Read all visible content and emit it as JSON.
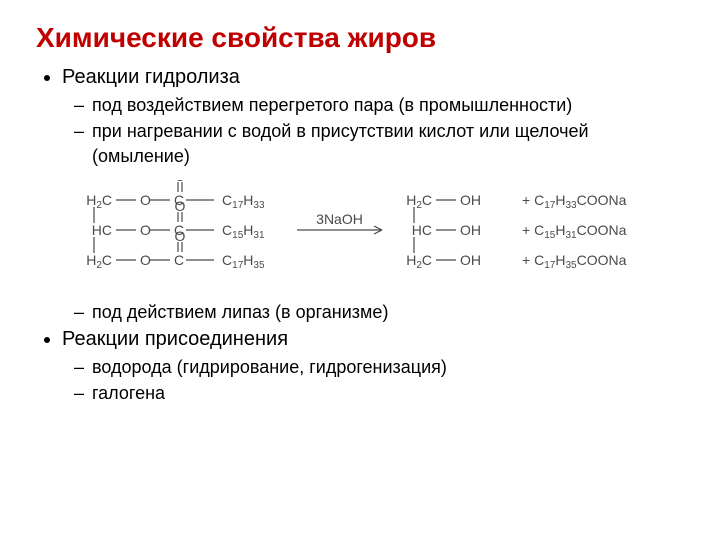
{
  "title": {
    "text": "Химические свойства жиров",
    "color": "#c00000",
    "fontsize": 28
  },
  "textColor": "#000000",
  "reactionColor": "#4a4a4a",
  "list": [
    {
      "label": "Реакции гидролиза",
      "children": [
        {
          "label": "под воздействием перегретого пара (в промышленности)"
        },
        {
          "label": "при нагревании с водой в присутствии кислот или щелочей (омыление)"
        },
        {
          "label": "под действием липаз (в организме)",
          "afterReaction": true
        }
      ]
    },
    {
      "label": "Реакции присоединения",
      "children": [
        {
          "label": "водорода (гидрирование, гидрогенизация)"
        },
        {
          "label": "галогена"
        }
      ]
    }
  ],
  "reaction": {
    "fontSize": 14,
    "subSize": 10,
    "reagent": "3NaOH",
    "left": {
      "rows": [
        {
          "carbon": "H₂C",
          "acyl": "C₁₇H₃₃"
        },
        {
          "carbon": "HC",
          "acyl": "C₁₅H₃₁"
        },
        {
          "carbon": "H₂C",
          "acyl": "C₁₇H₃₅"
        }
      ]
    },
    "right": {
      "rows": [
        {
          "carbon": "H₂C",
          "group": "OH",
          "salt": "+ C₁₇H₃₃COONa"
        },
        {
          "carbon": "HC",
          "group": "OH",
          "salt": "+ C₁₅H₃₁COONa"
        },
        {
          "carbon": "H₂C",
          "group": "OH",
          "salt": "+ C₁₇H₃₅COONa"
        }
      ]
    }
  }
}
